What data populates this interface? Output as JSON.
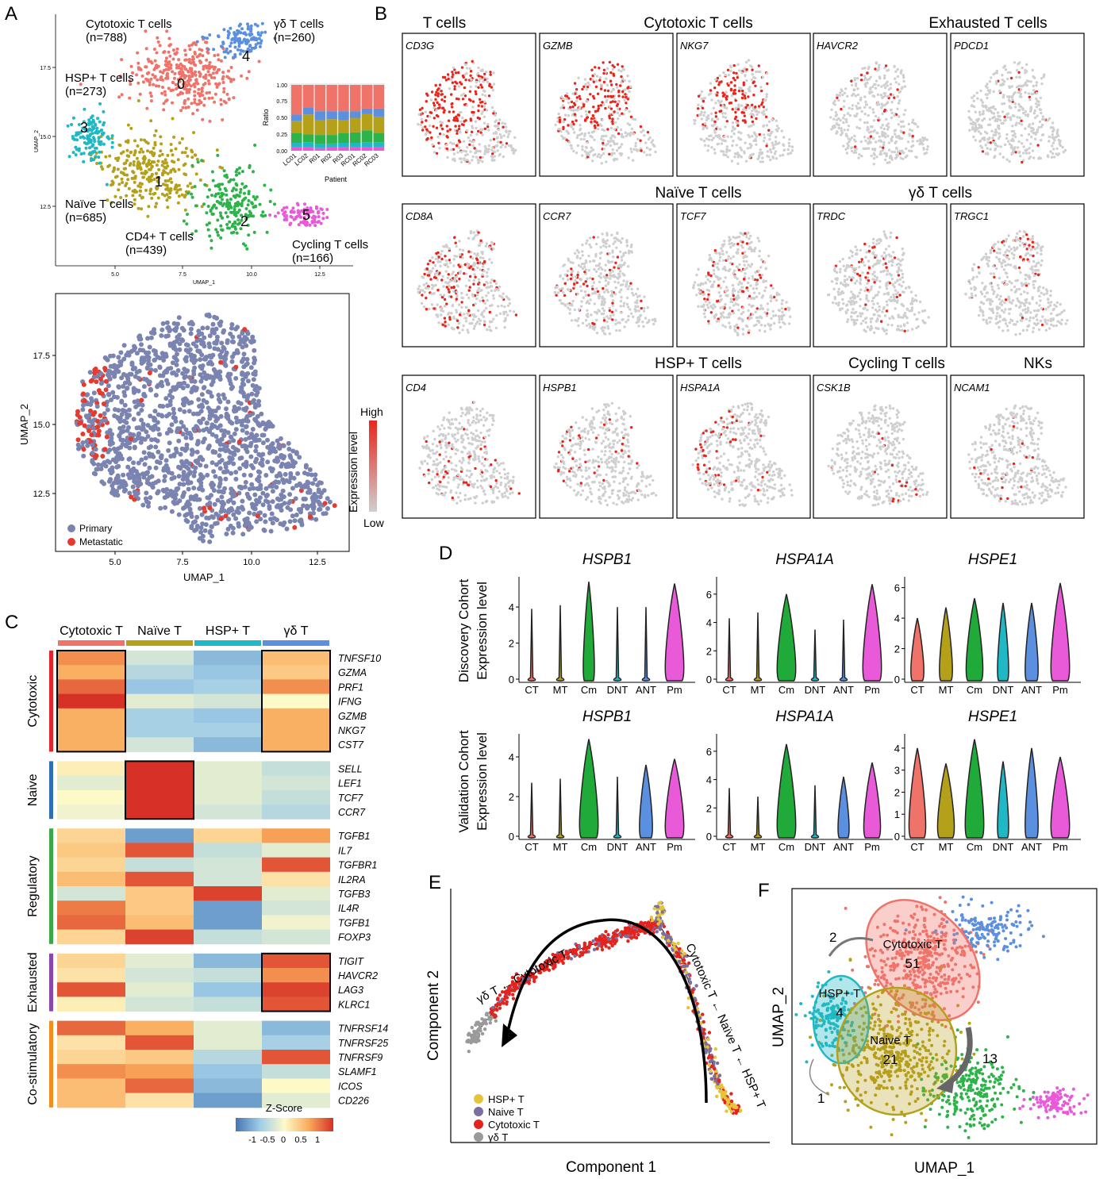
{
  "panel_letters": [
    "A",
    "B",
    "C",
    "D",
    "E",
    "F"
  ],
  "panelA": {
    "clusters": [
      {
        "id": "0",
        "name": "Cytotoxic T cells",
        "count": "(n=788)",
        "color": "#f0736a"
      },
      {
        "id": "1",
        "name": "Naïve T cells",
        "count": "(n=685)",
        "color": "#b5a01a"
      },
      {
        "id": "2",
        "name": "CD4+ T cells",
        "count": "(n=439)",
        "color": "#2db34a"
      },
      {
        "id": "3",
        "name": "HSP+ T cells",
        "count": "(n=273)",
        "color": "#1fb8c4"
      },
      {
        "id": "4",
        "name": "γδ T cells",
        "count": "(n=260)",
        "color": "#5b8fe0"
      },
      {
        "id": "5",
        "name": "Cycling T cells",
        "count": "(n=166)",
        "color": "#e85ad8"
      }
    ],
    "xlabel": "UMAP_1",
    "ylabel": "UMAP_2",
    "xticks": [
      "5.0",
      "7.5",
      "10.0",
      "12.5"
    ],
    "yticks": [
      "17.5",
      "15.0",
      "12.5"
    ],
    "inset": {
      "ylabel": "Ratio",
      "xlabel": "Patient",
      "yticks": [
        "1.00",
        "0.75",
        "0.50",
        "0.25",
        "0.00"
      ],
      "patients": [
        "LC01",
        "LC02",
        "R01",
        "R02",
        "R03",
        "RC01",
        "RC02",
        "RC03"
      ]
    },
    "lower": {
      "xlabel": "UMAP_1",
      "ylabel": "UMAP_2",
      "xticks": [
        "5.0",
        "7.5",
        "10.0",
        "12.5"
      ],
      "yticks": [
        "17.5",
        "15.0",
        "12.5"
      ],
      "legend": [
        {
          "label": "Primary",
          "color": "#7b84b0"
        },
        {
          "label": "Metastatic",
          "color": "#e43b2e"
        }
      ]
    }
  },
  "panelB": {
    "groups": [
      {
        "title": "T cells"
      },
      {
        "title": "Cytotoxic T cells"
      },
      {
        "title": "Exhausted T cells"
      },
      {
        "title": "Naïve T cells"
      },
      {
        "title": "γδ T cells"
      },
      {
        "title": "HSP+ T cells"
      },
      {
        "title": "Cycling T cells"
      },
      {
        "title": "NKs"
      }
    ],
    "genes": [
      [
        "CD3G",
        "GZMB",
        "NKG7",
        "HAVCR2",
        "PDCD1"
      ],
      [
        "CD8A",
        "CCR7",
        "TCF7",
        "TRDC",
        "TRGC1"
      ],
      [
        "CD4",
        "HSPB1",
        "HSPA1A",
        "CSK1B",
        "NCAM1"
      ]
    ],
    "legend": {
      "title": "Expression level",
      "high": "High",
      "low": "Low",
      "high_color": "#e8251b",
      "low_color": "#cfcfcf"
    }
  },
  "panelC": {
    "columns": [
      "Cytotoxic T",
      "Naïve T",
      "HSP+ T",
      "γδ T"
    ],
    "column_colors": [
      "#f0736a",
      "#b5a01a",
      "#1fb8c4",
      "#5b8fe0"
    ],
    "groups": [
      {
        "name": "Cytotoxic",
        "color": "#e3242b",
        "genes": [
          "TNFSF10",
          "GZMA",
          "PRF1",
          "IFNG",
          "GZMB",
          "NKG7",
          "CST7"
        ]
      },
      {
        "name": "Naive",
        "color": "#2f6db5",
        "genes": [
          "SELL",
          "LEF1",
          "TCF7",
          "CCR7"
        ]
      },
      {
        "name": "Regulatory",
        "color": "#3aa845",
        "genes": [
          "TGFB1",
          "IL7",
          "TGFBR1",
          "IL2RA",
          "TGFB3",
          "IL4R",
          "TGFB1",
          "FOXP3"
        ]
      },
      {
        "name": "Exhausted",
        "color": "#8e44ad",
        "genes": [
          "TIGIT",
          "HAVCR2",
          "LAG3",
          "KLRC1"
        ]
      },
      {
        "name": "Co-stimulatory",
        "color": "#f28c1a",
        "genes": [
          "TNFRSF14",
          "TNFRSF25",
          "TNFRSF9",
          "SLAMF1",
          "ICOS",
          "CD226"
        ]
      }
    ],
    "zscores": [
      [
        0.8,
        -0.3,
        -0.8,
        0.5
      ],
      [
        0.6,
        -0.5,
        -0.7,
        0.4
      ],
      [
        1.0,
        -0.7,
        -0.6,
        0.8
      ],
      [
        1.3,
        -0.2,
        -0.3,
        0.0
      ],
      [
        0.6,
        -0.6,
        -0.7,
        0.6
      ],
      [
        0.6,
        -0.6,
        -0.6,
        0.6
      ],
      [
        0.6,
        -0.3,
        -0.8,
        0.6
      ],
      [
        0.1,
        1.3,
        -0.2,
        -0.4
      ],
      [
        -0.2,
        1.3,
        -0.2,
        -0.3
      ],
      [
        0.0,
        1.3,
        -0.2,
        -0.4
      ],
      [
        -0.1,
        1.3,
        -0.3,
        -0.5
      ],
      [
        0.3,
        -1.0,
        0.3,
        0.7
      ],
      [
        0.4,
        1.1,
        -0.4,
        -0.2
      ],
      [
        0.3,
        -0.4,
        -0.3,
        1.1
      ],
      [
        0.5,
        1.1,
        -0.3,
        0.2
      ],
      [
        -0.3,
        0.4,
        1.2,
        -0.2
      ],
      [
        0.9,
        0.4,
        -1.0,
        -0.3
      ],
      [
        1.0,
        0.5,
        -1.0,
        -0.1
      ],
      [
        0.3,
        1.2,
        -0.4,
        -0.3
      ],
      [
        0.3,
        -0.2,
        -0.8,
        1.1
      ],
      [
        0.2,
        -0.3,
        -0.4,
        0.8
      ],
      [
        1.1,
        -0.2,
        -0.7,
        1.2
      ],
      [
        0.1,
        -0.3,
        -0.4,
        1.1
      ],
      [
        1.0,
        0.6,
        -0.2,
        -0.8
      ],
      [
        0.2,
        1.1,
        -0.2,
        -0.6
      ],
      [
        0.3,
        0.4,
        -0.5,
        1.1
      ],
      [
        0.8,
        0.7,
        -0.7,
        -0.4
      ],
      [
        0.5,
        1.0,
        -0.8,
        0.0
      ],
      [
        0.5,
        0.2,
        -1.0,
        -0.2
      ]
    ],
    "legend": {
      "title": "Z-Score",
      "ticks": [
        "-1",
        "-0.5",
        "0",
        "0.5",
        "1"
      ]
    }
  },
  "panelD": {
    "categories": [
      "CT",
      "MT",
      "Cm",
      "DNT",
      "ANT",
      "Pm"
    ],
    "colors": [
      "#f0736a",
      "#b5a01a",
      "#1faa3a",
      "#1fb8c4",
      "#5b8fe0",
      "#e85ad8"
    ],
    "row_labels": [
      [
        "Discovery Cohort",
        "Expression level"
      ],
      [
        "Validation Cohort",
        "Expression level"
      ]
    ],
    "plots": [
      {
        "gene": "HSPB1",
        "yticks": [
          "4",
          "2",
          "0"
        ]
      },
      {
        "gene": "HSPA1A",
        "yticks": [
          "6",
          "4",
          "2",
          "0"
        ]
      },
      {
        "gene": "HSPE1",
        "yticks": [
          "6",
          "4",
          "2",
          "0"
        ]
      },
      {
        "gene": "HSPB1",
        "yticks": [
          "4",
          "2",
          "0"
        ]
      },
      {
        "gene": "HSPA1A",
        "yticks": [
          "6",
          "4",
          "2",
          "0"
        ]
      },
      {
        "gene": "HSPE1",
        "yticks": [
          "4",
          "3",
          "2",
          "1",
          "0"
        ]
      }
    ]
  },
  "panelE": {
    "xlabel": "Component 1",
    "ylabel": "Component 2",
    "arrow_left": "γδ T ← Cytotoxic T",
    "arrow_right": "Cytotoxic T ← Naïve T ← HSP+ T",
    "legend": [
      {
        "label": "HSP+ T",
        "color": "#e3c43a"
      },
      {
        "label": "Naive T",
        "color": "#7b6ea0"
      },
      {
        "label": "Cytotoxic T",
        "color": "#e4231c"
      },
      {
        "label": "γδ T",
        "color": "#9a9a9a"
      }
    ]
  },
  "panelF": {
    "xlabel": "UMAP_1",
    "ylabel": "UMAP_2",
    "ellipses": [
      {
        "label": "Cytotoxic T",
        "value": "51"
      },
      {
        "label": "HSP+ T",
        "value": "4"
      },
      {
        "label": "Naive T",
        "value": "21"
      }
    ],
    "arrows": [
      "2",
      "13",
      "1"
    ]
  }
}
